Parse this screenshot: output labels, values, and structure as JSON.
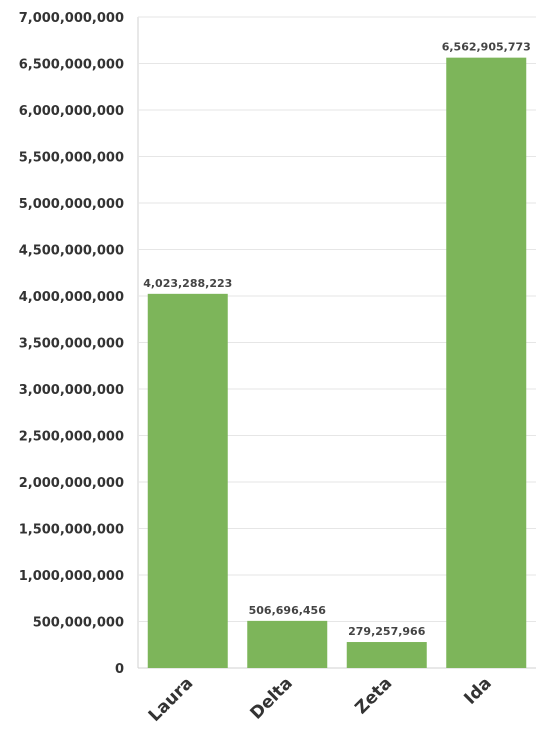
{
  "chart_data": {
    "type": "bar",
    "categories": [
      "Laura",
      "Delta",
      "Zeta",
      "Ida"
    ],
    "values": [
      4023288223,
      506696456,
      279257966,
      6562905773
    ],
    "value_labels": [
      "4,023,288,223",
      "506,696,456",
      "279,257,966",
      "6,562,905,773"
    ],
    "title": "",
    "xlabel": "",
    "ylabel": "",
    "ylim": [
      0,
      7000000000
    ],
    "y_ticks": [
      0,
      500000000,
      1000000000,
      1500000000,
      2000000000,
      2500000000,
      3000000000,
      3500000000,
      4000000000,
      4500000000,
      5000000000,
      5500000000,
      6000000000,
      6500000000,
      7000000000
    ],
    "y_tick_labels": [
      "0",
      "500,000,000",
      "1,000,000,000",
      "1,500,000,000",
      "2,000,000,000",
      "2,500,000,000",
      "3,000,000,000",
      "3,500,000,000",
      "4,000,000,000",
      "4,500,000,000",
      "5,000,000,000",
      "5,500,000,000",
      "6,000,000,000",
      "6,500,000,000",
      "7,000,000,000"
    ],
    "grid": true,
    "legend": "none",
    "bar_color": "#7db55a"
  }
}
